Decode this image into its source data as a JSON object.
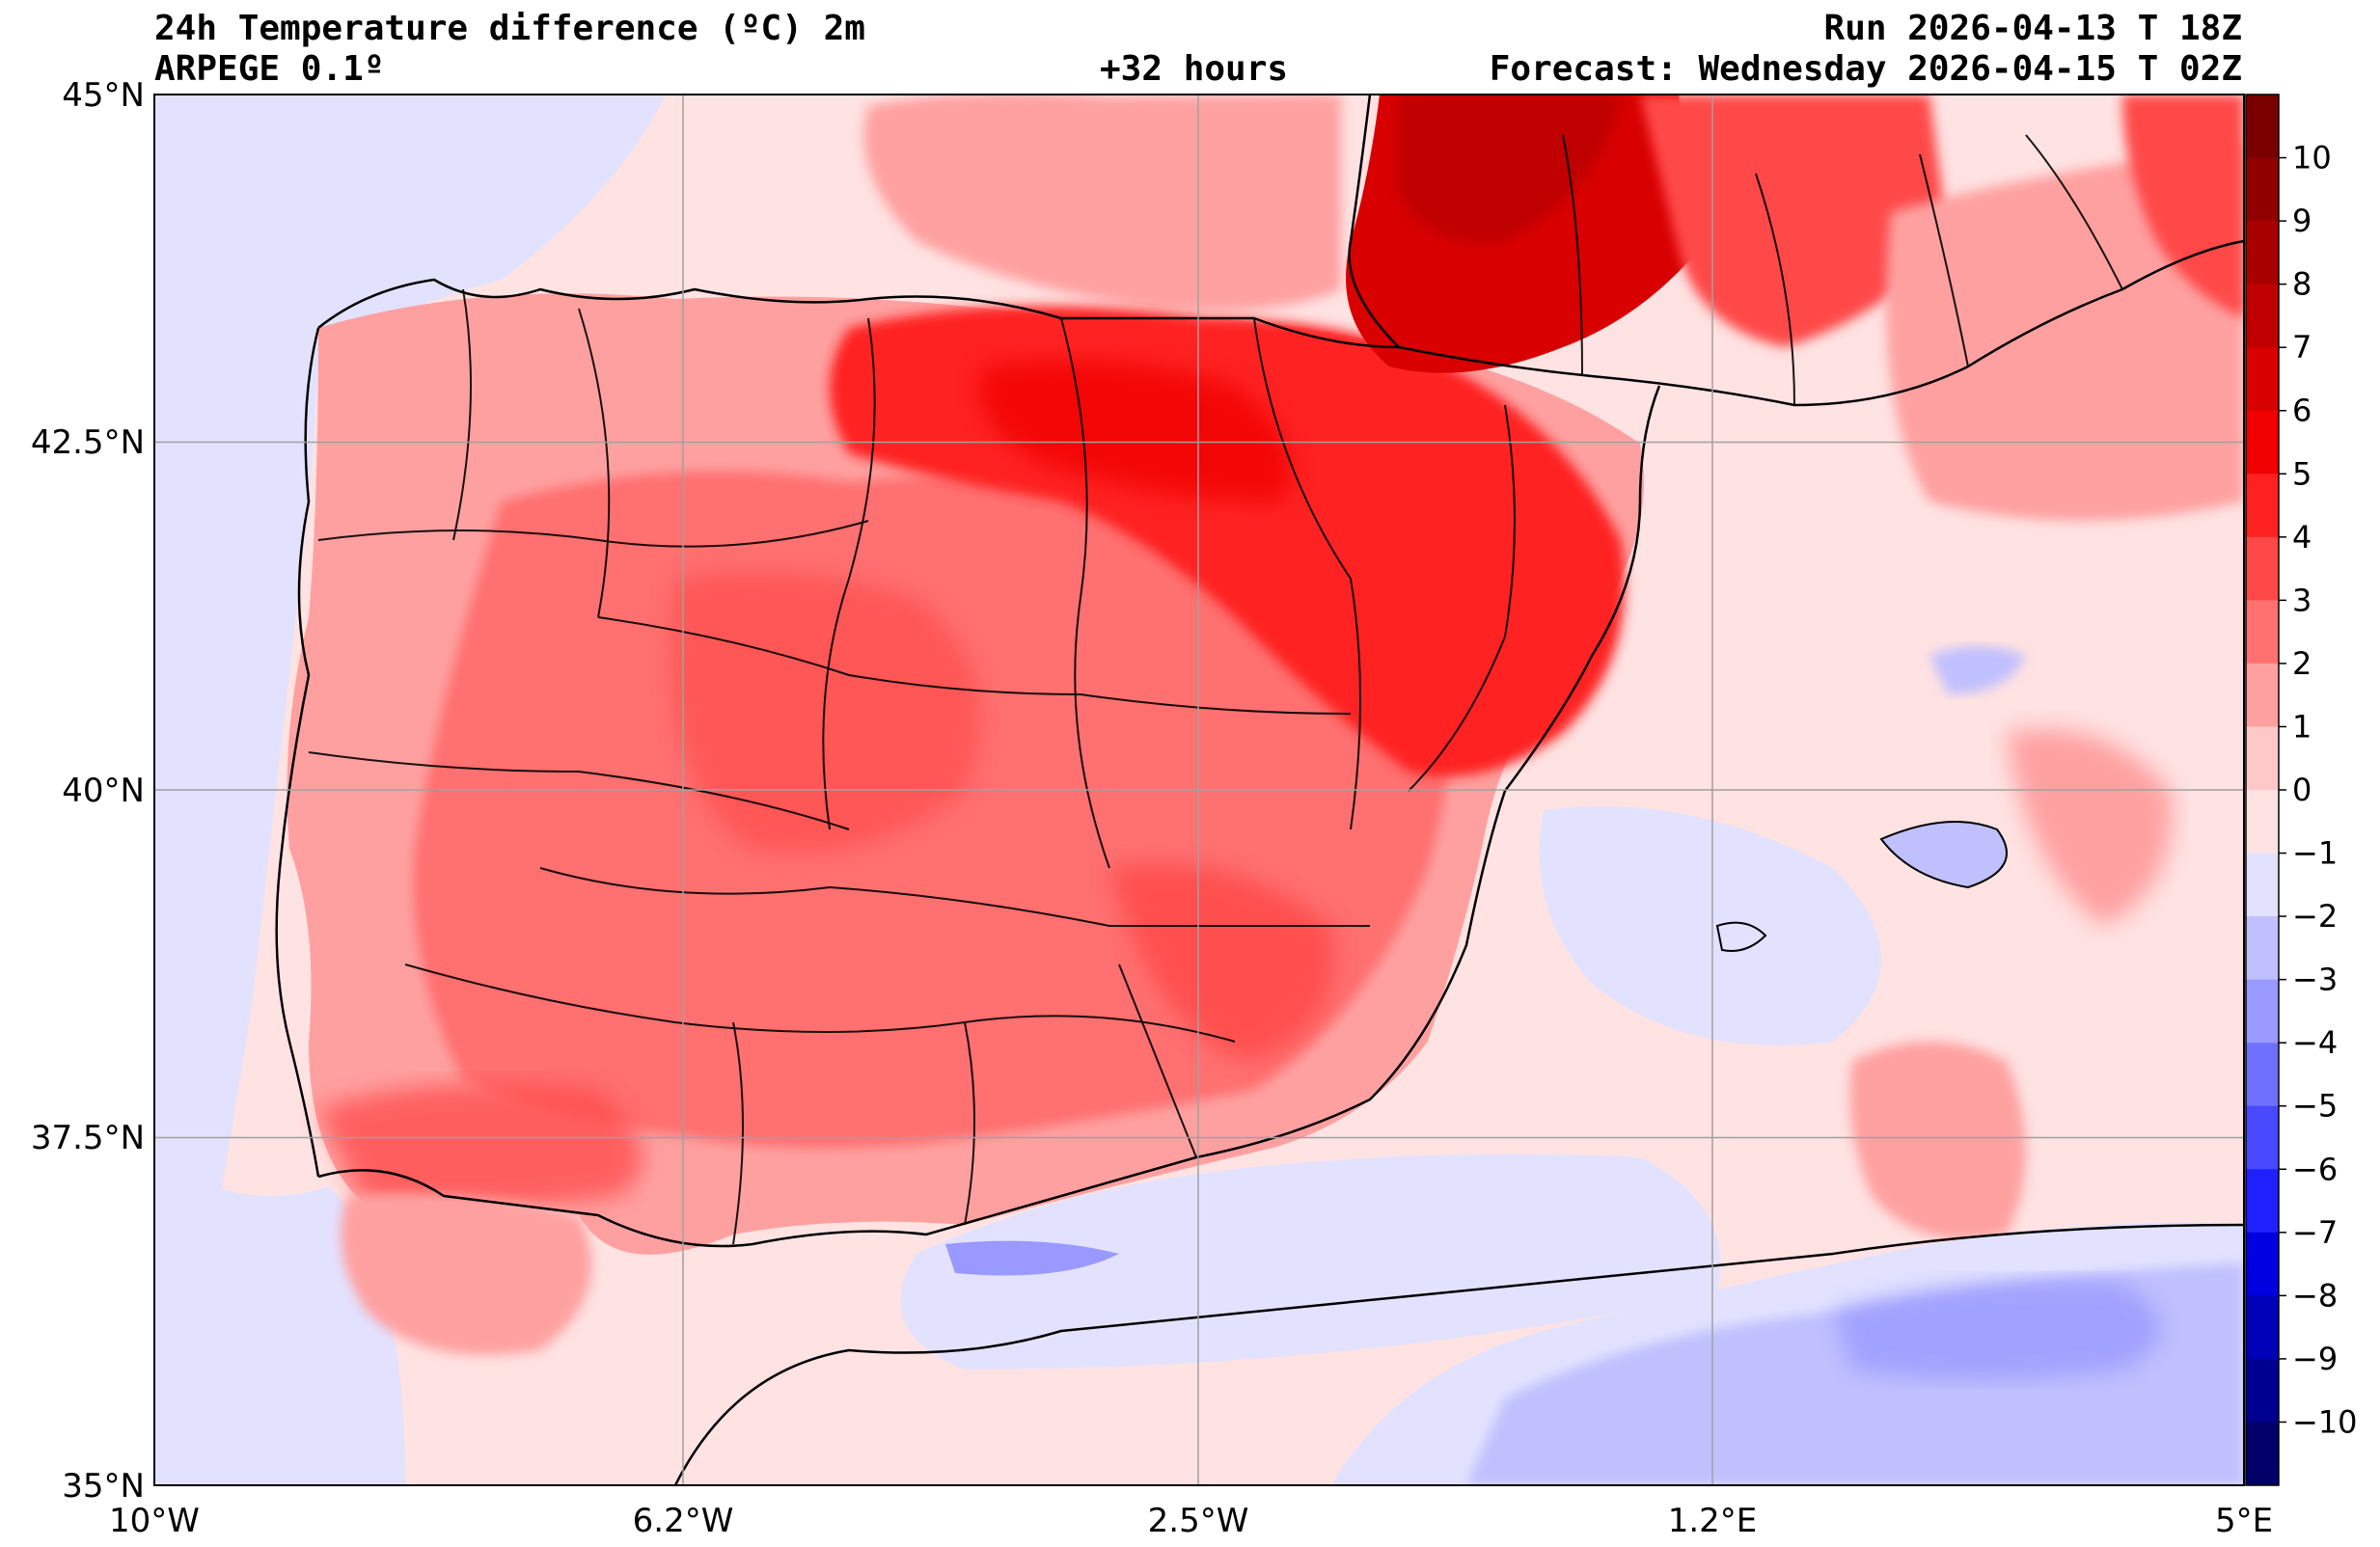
{
  "header": {
    "title": "24h Temperature difference (ºC) 2m",
    "model": "ARPEGE 0.1º",
    "lead_time": "+32 hours",
    "run": "Run 2026-04-13 T 18Z",
    "valid": "Forecast: Wednesday 2026-04-15 T 02Z"
  },
  "axes": {
    "lat_ticks": [
      "45°N",
      "42.5°N",
      "40°N",
      "37.5°N",
      "35°N"
    ],
    "lon_ticks": [
      "10°W",
      "6.2°W",
      "2.5°W",
      "1.2°E",
      "5°E"
    ]
  },
  "colorbar": {
    "labels": [
      "10",
      "9",
      "8",
      "7",
      "6",
      "5",
      "4",
      "3",
      "2",
      "1",
      "0",
      "−1",
      "−2",
      "−3",
      "−4",
      "−5",
      "−6",
      "−7",
      "−8",
      "−9",
      "−10"
    ],
    "colors": [
      "#7a0000",
      "#900000",
      "#a80000",
      "#c00000",
      "#d80000",
      "#f00000",
      "#ff2020",
      "#ff4848",
      "#ff7070",
      "#ffa0a0",
      "#ffc8c8",
      "#ffe2e2",
      "#e2e2ff",
      "#c0c0ff",
      "#9999ff",
      "#7070ff",
      "#4848ff",
      "#2020ff",
      "#0000e0",
      "#0000b8",
      "#000090",
      "#000068"
    ]
  }
}
